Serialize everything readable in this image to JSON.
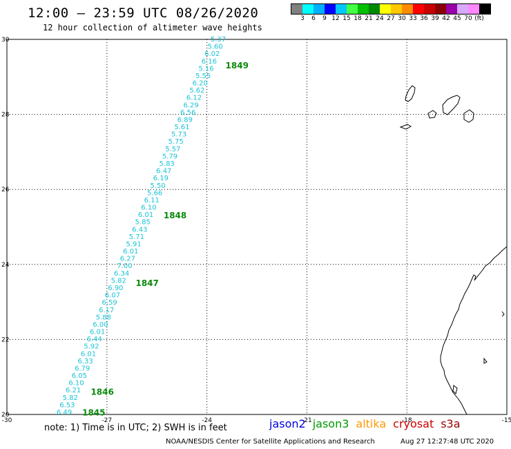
{
  "header": {
    "title": "12:00 – 23:59 UTC 08/26/2020",
    "subtitle": "12 hour collection of altimeter wave heights"
  },
  "legend_scale": {
    "colors": [
      "#808080",
      "#00ffff",
      "#00b0ff",
      "#0000ff",
      "#00c8ff",
      "#44ff44",
      "#00c000",
      "#008800",
      "#ffff00",
      "#ffc800",
      "#ff8c00",
      "#ff0000",
      "#c80000",
      "#8b0000",
      "#9900aa",
      "#d8a8ff",
      "#ff88ff",
      "#000000"
    ],
    "labels": [
      "3",
      "6",
      "9",
      "12",
      "15",
      "18",
      "21",
      "24",
      "27",
      "30",
      "33",
      "36",
      "39",
      "42",
      "45",
      "70",
      "(ft)"
    ]
  },
  "map": {
    "lon_range": [
      -30,
      -15
    ],
    "lat_range": [
      20,
      30
    ],
    "lon_ticks": [
      "-30",
      "-27",
      "-24",
      "-21",
      "-18",
      "-15"
    ],
    "lat_ticks": [
      "30",
      "28",
      "26",
      "24",
      "22",
      "20"
    ],
    "grid": true
  },
  "track": {
    "swh_values": [
      "5.37",
      "5.60",
      "6.02",
      "6.16",
      "5.16",
      "5.55",
      "6.20",
      "5.62",
      "6.12",
      "6.29",
      "6.56",
      "6.89",
      "5.61",
      "5.73",
      "5.75",
      "5.57",
      "5.79",
      "5.83",
      "6.47",
      "6.19",
      "5.50",
      "5.66",
      "6.11",
      "6.10",
      "6.01",
      "5.85",
      "6.43",
      "5.71",
      "5.91",
      "6.01",
      "6.27",
      "7.00",
      "6.34",
      "5.82",
      "6.90",
      "6.07",
      "6.59",
      "6.17",
      "5.88",
      "6.00",
      "6.01",
      "6.44",
      "5.92",
      "6.01",
      "6.33",
      "6.79",
      "6.05",
      "6.10",
      "6.21",
      "5.82",
      "6.53",
      "6.49"
    ],
    "time_labels": [
      {
        "text": "1849",
        "lat": 29.3
      },
      {
        "text": "1848",
        "lat": 25.3
      },
      {
        "text": "1847",
        "lat": 23.5
      },
      {
        "text": "1846",
        "lat": 20.6
      },
      {
        "text": "1845",
        "lat": 20.05
      }
    ]
  },
  "footer": {
    "note": "note:  1) Time is in UTC;  2) SWH is in feet",
    "satellites": [
      {
        "name": "jason2",
        "color": "#0000dd"
      },
      {
        "name": "jason3",
        "color": "#009900"
      },
      {
        "name": "altika",
        "color": "#ff9900"
      },
      {
        "name": "cryosat",
        "color": "#cc0000"
      },
      {
        "name": "s3a",
        "color": "#990000"
      }
    ],
    "credit": "NOAA/NESDIS Center for Satellite Applications and Research",
    "timestamp": "Aug 27 12:27:48 UTC 2020"
  }
}
